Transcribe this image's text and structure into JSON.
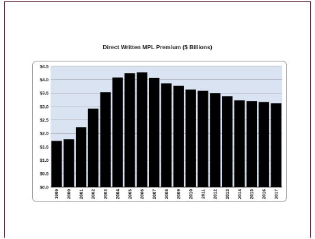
{
  "chart_data": {
    "type": "bar",
    "title": "Direct Written MPL Premium ($ Billions)",
    "xlabel": "",
    "ylabel": "",
    "categories": [
      "1999",
      "2000",
      "2001",
      "2002",
      "2003",
      "2004",
      "2005",
      "2006",
      "2007",
      "2008",
      "2009",
      "2010",
      "2011",
      "2012",
      "2013",
      "2014",
      "2015",
      "2016",
      "2017"
    ],
    "values": [
      1.72,
      1.78,
      2.23,
      2.92,
      3.53,
      4.08,
      4.24,
      4.27,
      4.07,
      3.86,
      3.77,
      3.63,
      3.59,
      3.5,
      3.38,
      3.23,
      3.2,
      3.17,
      3.12
    ],
    "y_tick_labels": [
      "$0.0",
      "$0.5",
      "$1.0",
      "$1.5",
      "$2.0",
      "$2.5",
      "$3.0",
      "$3.5",
      "$4.0",
      "$4.5"
    ],
    "ylim": [
      0,
      4.5
    ],
    "grid": true,
    "colors": {
      "bar": "#000000",
      "plot_background": "#d9e3f1",
      "grid": "#a6a6a6",
      "frame_border": "#5e1a2e"
    }
  }
}
